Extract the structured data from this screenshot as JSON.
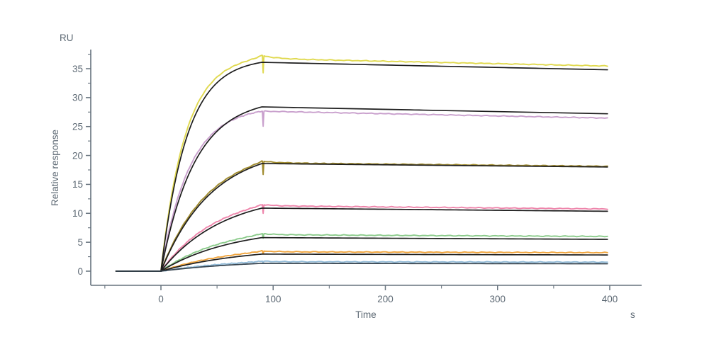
{
  "figure": {
    "y_axis_unit": "RU",
    "y_axis_label": "Relative response",
    "x_axis_label": "Time",
    "x_axis_unit": "s"
  },
  "colors": {
    "background": "#ffffff",
    "axis": "#66727d",
    "text": "#5d6974",
    "fit_line": "#1e1e1e"
  },
  "chart_data": {
    "type": "line",
    "title": "",
    "subtitle": "",
    "xlabel": "Time",
    "x_unit": "s",
    "ylabel": "Relative response",
    "y_unit": "RU",
    "xlim": [
      -62,
      428
    ],
    "ylim": [
      0,
      38.3
    ],
    "x_ticks_major": [
      0,
      100,
      200,
      300,
      400
    ],
    "x_ticks_minor": [
      -50,
      50,
      150,
      250,
      350
    ],
    "y_ticks_major": [
      0,
      5,
      10,
      15,
      20,
      25,
      30,
      35
    ],
    "y_ticks_minor": [
      2.5,
      7.5,
      12.5,
      17.5,
      22.5,
      27.5,
      32.5,
      37.5
    ],
    "grid": false,
    "legend_position": "none",
    "description": "SPR sensorgram: seven concentration traces (colored) overlaid with kinetic fit curves (black). Baseline from -40 s, association 0-90 s, dissociation 90-400 s with small injection-end spike artifacts.",
    "phases": {
      "baseline_start_s": -40,
      "association_start_s": 0,
      "dissociation_start_s": 90,
      "end_s": 400
    },
    "series": [
      {
        "name": "trace-1-yellow",
        "data_color": "#e0d94f",
        "fit_color": "#1e1e1e",
        "response_at_90_RU": 36.1,
        "response_at_400_RU": 34.8,
        "kobs_per_s": 0.043,
        "kobs_data_mult": 1.06,
        "data_offset_RU": 0.65,
        "artifact_depth_RU": 3.0,
        "overshoot_RU": 0.55
      },
      {
        "name": "trace-2-violet",
        "data_color": "#c9a0cd",
        "fit_color": "#1e1e1e",
        "response_at_90_RU": 28.4,
        "response_at_400_RU": 27.2,
        "kobs_per_s": 0.033,
        "kobs_data_mult": 1.18,
        "data_offset_RU": -0.75,
        "artifact_depth_RU": 2.6,
        "overshoot_RU": 0.0
      },
      {
        "name": "trace-3-olive",
        "data_color": "#a08b2e",
        "fit_color": "#1e1e1e",
        "response_at_90_RU": 18.6,
        "response_at_400_RU": 18.0,
        "kobs_per_s": 0.022,
        "kobs_data_mult": 1.08,
        "data_offset_RU": 0.12,
        "artifact_depth_RU": 2.3,
        "overshoot_RU": 0.3
      },
      {
        "name": "trace-4-pink",
        "data_color": "#ee85ab",
        "fit_color": "#1e1e1e",
        "response_at_90_RU": 10.9,
        "response_at_400_RU": 10.35,
        "kobs_per_s": 0.018,
        "kobs_data_mult": 1.1,
        "data_offset_RU": 0.4,
        "artifact_depth_RU": 1.5,
        "overshoot_RU": 0.2
      },
      {
        "name": "trace-5-green",
        "data_color": "#8bcb8b",
        "fit_color": "#1e1e1e",
        "response_at_90_RU": 5.8,
        "response_at_400_RU": 5.5,
        "kobs_per_s": 0.0155,
        "kobs_data_mult": 1.1,
        "data_offset_RU": 0.5,
        "artifact_depth_RU": 0.8,
        "overshoot_RU": 0.2
      },
      {
        "name": "trace-6-orange",
        "data_color": "#f0a43c",
        "fit_color": "#1e1e1e",
        "response_at_90_RU": 2.95,
        "response_at_400_RU": 2.8,
        "kobs_per_s": 0.013,
        "kobs_data_mult": 1.1,
        "data_offset_RU": 0.4,
        "artifact_depth_RU": 0.5,
        "overshoot_RU": 0.15
      },
      {
        "name": "trace-7-blue",
        "data_color": "#92bbd8",
        "fit_color": "#36444f",
        "response_at_90_RU": 1.35,
        "response_at_400_RU": 1.28,
        "kobs_per_s": 0.012,
        "kobs_data_mult": 1.1,
        "data_offset_RU": 0.28,
        "artifact_depth_RU": 0.3,
        "overshoot_RU": 0.1
      }
    ]
  }
}
